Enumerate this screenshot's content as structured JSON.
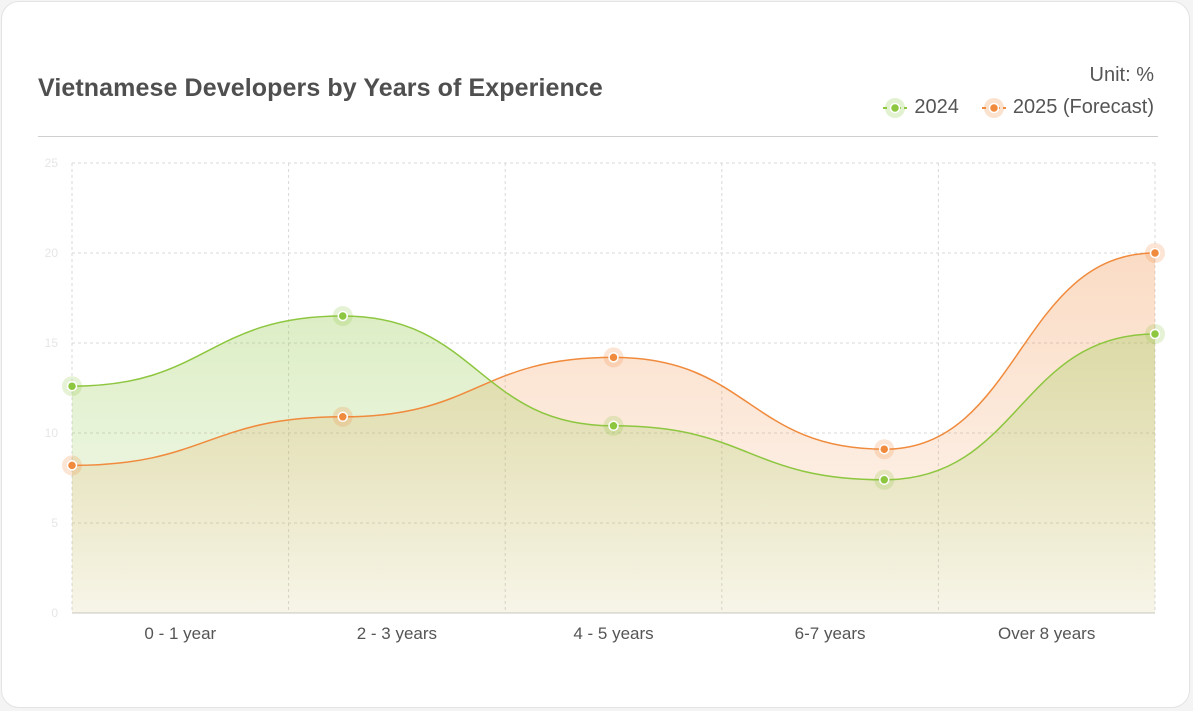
{
  "chart_data": {
    "type": "area",
    "title": "Vietnamese Developers by Years of Experience",
    "unit_label": "Unit: %",
    "categories": [
      "0 - 1 year",
      "2 - 3 years",
      "4 - 5 years",
      "6-7 years",
      "Over 8 years"
    ],
    "ylim": [
      0,
      25
    ],
    "yticks": [
      0,
      5,
      10,
      15,
      20,
      25
    ],
    "grid": true,
    "legend_position": "top-right",
    "series": [
      {
        "name": "2024",
        "values": [
          12.6,
          16.5,
          10.4,
          7.4,
          15.5
        ],
        "color": "#8dc63f"
      },
      {
        "name": "2025 (Forecast)",
        "values": [
          8.2,
          10.9,
          14.2,
          9.1,
          20.0
        ],
        "color": "#f08a3c"
      }
    ]
  }
}
